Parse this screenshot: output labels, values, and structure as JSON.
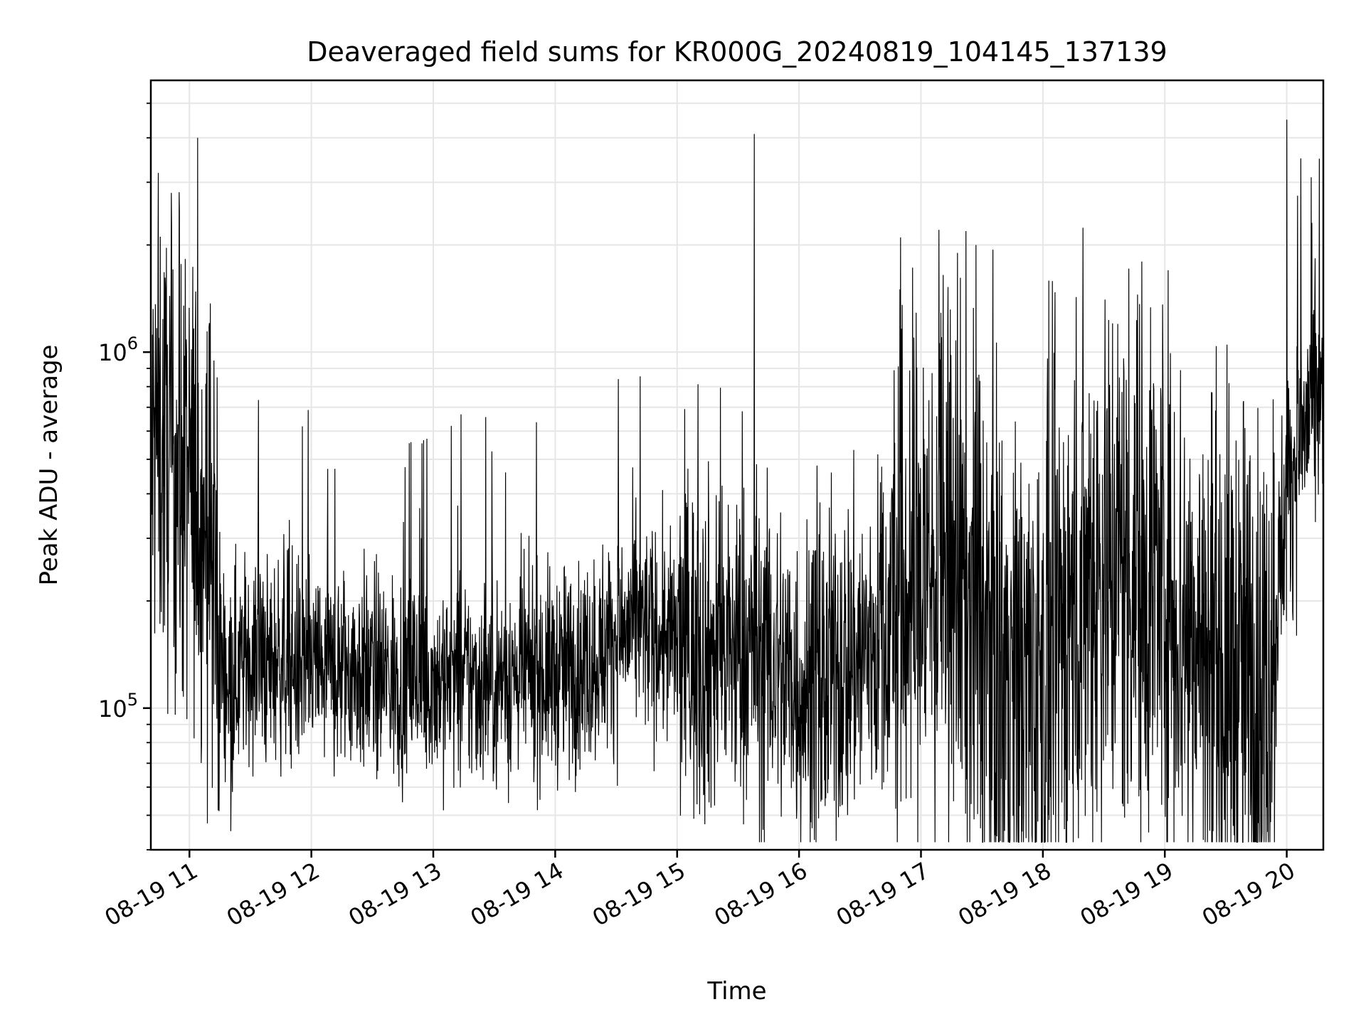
{
  "chart_data": {
    "type": "line",
    "title": "Deaveraged field sums for KR000G_20240819_104145_137139",
    "xlabel": "Time",
    "ylabel": "Peak ADU - average",
    "y_scale": "log",
    "xlim": [
      "2024-08-19 10:41",
      "2024-08-19 20:18"
    ],
    "ylim": [
      40000,
      5800000
    ],
    "x_ticks": [
      "08-19 11",
      "08-19 12",
      "08-19 13",
      "08-19 14",
      "08-19 15",
      "08-19 16",
      "08-19 17",
      "08-19 18",
      "08-19 19",
      "08-19 20"
    ],
    "y_ticks": [
      {
        "value": 100000,
        "base": "10",
        "exp": "5"
      },
      {
        "value": 1000000,
        "base": "10",
        "exp": "6"
      }
    ],
    "grid": true,
    "legend": "none",
    "series_color": "#000000",
    "series": [
      {
        "x": [
          "10:41",
          "10:45",
          "10:50",
          "10:55",
          "11:00",
          "11:05",
          "11:10",
          "11:15",
          "11:20",
          "11:25",
          "11:30",
          "11:35",
          "11:40",
          "11:45",
          "11:50",
          "11:55",
          "12:00",
          "12:10",
          "12:20",
          "12:30",
          "12:40",
          "12:50",
          "13:00",
          "13:10",
          "13:20",
          "13:30",
          "13:40",
          "13:50",
          "14:00",
          "14:10",
          "14:20",
          "14:30",
          "14:40",
          "14:50",
          "15:00",
          "15:10",
          "15:20",
          "15:30",
          "15:40",
          "15:50",
          "16:00",
          "16:10",
          "16:20",
          "16:30",
          "16:40",
          "16:50",
          "17:00",
          "17:10",
          "17:20",
          "17:30",
          "17:40",
          "17:50",
          "18:00",
          "18:10",
          "18:20",
          "18:30",
          "18:40",
          "18:50",
          "19:00",
          "19:10",
          "19:20",
          "19:30",
          "19:40",
          "19:50",
          "20:00",
          "20:05",
          "20:10",
          "20:18"
        ],
        "y": [
          520000,
          580000,
          500000,
          460000,
          420000,
          380000,
          320000,
          140000,
          120000,
          130000,
          140000,
          135000,
          130000,
          140000,
          135000,
          130000,
          130000,
          125000,
          130000,
          125000,
          120000,
          125000,
          120000,
          120000,
          118000,
          120000,
          122000,
          125000,
          125000,
          130000,
          140000,
          160000,
          170000,
          160000,
          150000,
          145000,
          140000,
          145000,
          140000,
          130000,
          115000,
          110000,
          130000,
          140000,
          160000,
          200000,
          240000,
          230000,
          210000,
          160000,
          130000,
          115000,
          120000,
          160000,
          230000,
          260000,
          260000,
          260000,
          230000,
          170000,
          140000,
          130000,
          120000,
          110000,
          400000,
          520000,
          650000,
          700000
        ],
        "spikes": [
          {
            "x": "10:55",
            "y": 2500000
          },
          {
            "x": "11:04",
            "y": 4000000
          },
          {
            "x": "15:38",
            "y": 4100000
          },
          {
            "x": "16:50",
            "y": 2100000
          },
          {
            "x": "17:18",
            "y": 1900000
          },
          {
            "x": "17:27",
            "y": 2000000
          },
          {
            "x": "20:00",
            "y": 4500000
          },
          {
            "x": "20:07",
            "y": 3500000
          },
          {
            "x": "20:12",
            "y": 3100000
          }
        ]
      }
    ]
  }
}
